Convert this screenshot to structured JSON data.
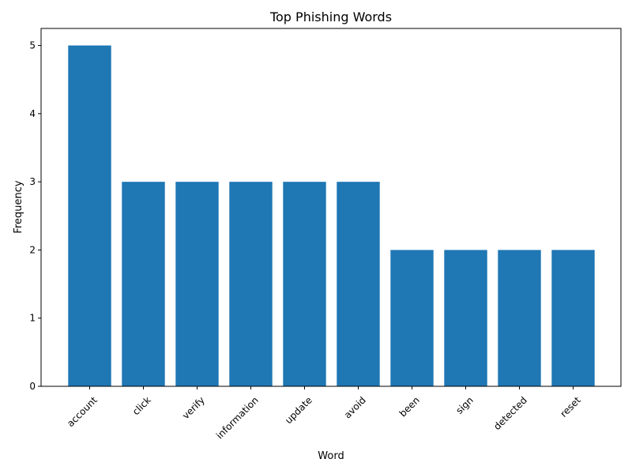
{
  "chart_data": {
    "type": "bar",
    "title": "Top Phishing Words",
    "xlabel": "Word",
    "ylabel": "Frequency",
    "categories": [
      "account",
      "click",
      "verify",
      "information",
      "update",
      "avoid",
      "been",
      "sign",
      "detected",
      "reset"
    ],
    "values": [
      5,
      3,
      3,
      3,
      3,
      3,
      2,
      2,
      2,
      2
    ],
    "ylim": [
      0,
      5.25
    ],
    "yticks": [
      0,
      1,
      2,
      3,
      4,
      5
    ],
    "grid": false,
    "legend": "none",
    "bar_color": "#1f77b4"
  }
}
